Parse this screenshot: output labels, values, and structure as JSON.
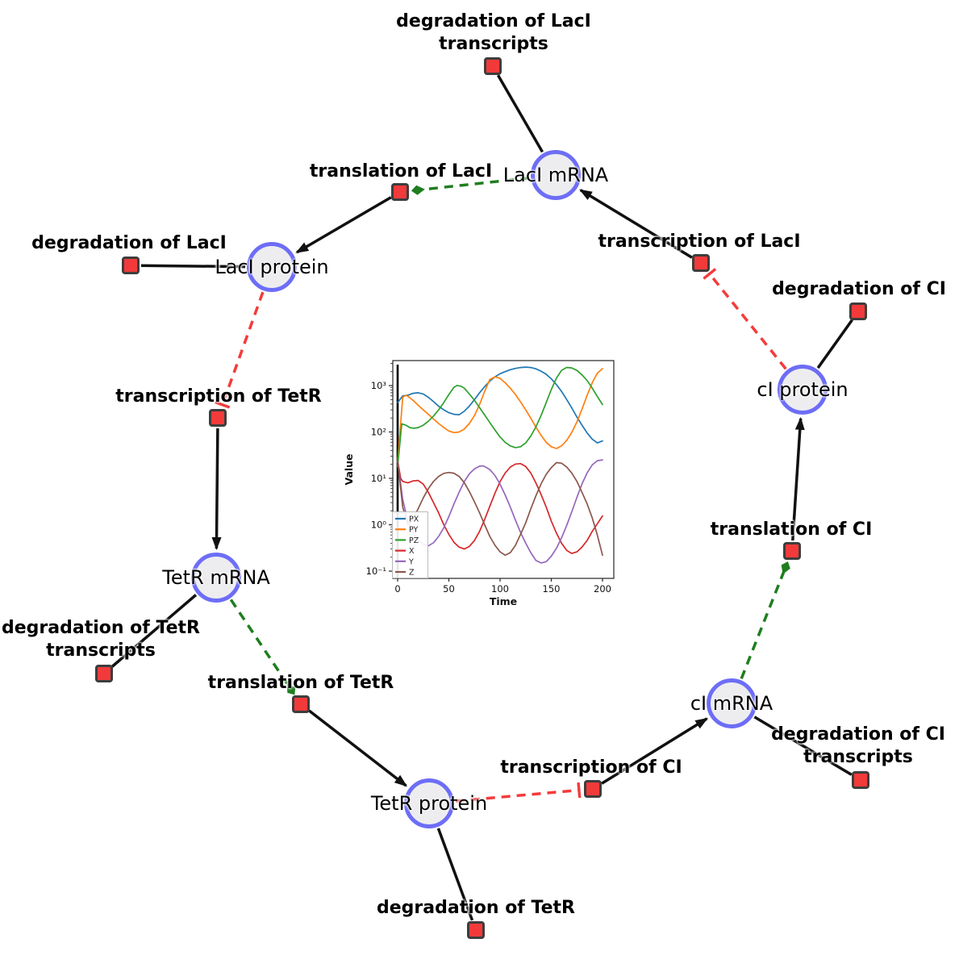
{
  "diagram": {
    "species": [
      {
        "id": "laci-mrna",
        "label": "LacI mRNA"
      },
      {
        "id": "laci-protein",
        "label": "LacI protein"
      },
      {
        "id": "tetr-mrna",
        "label": "TetR mRNA"
      },
      {
        "id": "tetr-protein",
        "label": "TetR protein"
      },
      {
        "id": "ci-mrna",
        "label": "cI mRNA"
      },
      {
        "id": "ci-protein",
        "label": "cI protein"
      }
    ],
    "reactions": [
      {
        "id": "degradation-laci-transcripts",
        "label": "degradation of LacI transcripts"
      },
      {
        "id": "translation-laci",
        "label": "translation of LacI"
      },
      {
        "id": "degradation-laci",
        "label": "degradation of LacI"
      },
      {
        "id": "transcription-laci",
        "label": "transcription of LacI"
      },
      {
        "id": "degradation-ci",
        "label": "degradation of CI"
      },
      {
        "id": "transcription-tetr",
        "label": "transcription of TetR"
      },
      {
        "id": "degradation-tetr-transcripts",
        "label": "degradation of TetR transcripts"
      },
      {
        "id": "translation-tetr",
        "label": "translation of TetR"
      },
      {
        "id": "degradation-tetr",
        "label": "degradation of TetR"
      },
      {
        "id": "transcription-ci",
        "label": "transcription of CI"
      },
      {
        "id": "degradation-ci-transcripts",
        "label": "degradation of CI transcripts"
      },
      {
        "id": "translation-ci",
        "label": "translation of CI"
      }
    ],
    "edge_colors": {
      "production_black": "#111111",
      "catalysis_green": "#1e7e1e",
      "inhibition_red": "#f43b3b"
    },
    "node_colors": {
      "species_fill": "#ededf0",
      "species_border": "#6d6df7",
      "reaction_fill": "#f23a3a",
      "reaction_border": "#3d3d3d"
    }
  },
  "chart_data": {
    "type": "line",
    "title": "",
    "xlabel": "Time",
    "ylabel": "Value",
    "x_ticks": [
      0,
      50,
      100,
      150,
      200
    ],
    "y_scale": "log",
    "y_ticks": [
      {
        "value": 0.1,
        "label": "10⁻¹"
      },
      {
        "value": 1,
        "label": "10⁰"
      },
      {
        "value": 10,
        "label": "10¹"
      },
      {
        "value": 100,
        "label": "10²"
      },
      {
        "value": 1000,
        "label": "10³"
      }
    ],
    "xlim": [
      -4.7,
      211
    ],
    "ylim": [
      0.07,
      3470
    ],
    "grid": false,
    "legend_position": "lower left",
    "initial_spike_at_t": 0,
    "series": [
      {
        "name": "PX",
        "color": "#1f77b4",
        "points": [
          [
            0,
            430
          ],
          [
            5,
            600
          ],
          [
            10,
            620
          ],
          [
            15,
            680
          ],
          [
            20,
            700
          ],
          [
            25,
            660
          ],
          [
            30,
            560
          ],
          [
            35,
            450
          ],
          [
            40,
            360
          ],
          [
            45,
            300
          ],
          [
            50,
            260
          ],
          [
            55,
            240
          ],
          [
            60,
            235
          ],
          [
            65,
            280
          ],
          [
            70,
            360
          ],
          [
            75,
            500
          ],
          [
            80,
            700
          ],
          [
            85,
            950
          ],
          [
            90,
            1250
          ],
          [
            95,
            1550
          ],
          [
            100,
            1800
          ],
          [
            105,
            2000
          ],
          [
            110,
            2200
          ],
          [
            115,
            2350
          ],
          [
            120,
            2450
          ],
          [
            125,
            2500
          ],
          [
            130,
            2450
          ],
          [
            135,
            2300
          ],
          [
            140,
            2050
          ],
          [
            145,
            1750
          ],
          [
            150,
            1400
          ],
          [
            155,
            1050
          ],
          [
            160,
            750
          ],
          [
            165,
            500
          ],
          [
            170,
            330
          ],
          [
            175,
            210
          ],
          [
            180,
            140
          ],
          [
            185,
            95
          ],
          [
            190,
            70
          ],
          [
            195,
            58
          ],
          [
            200,
            64
          ]
        ]
      },
      {
        "name": "PY",
        "color": "#ff7f0e",
        "points": [
          [
            0,
            22
          ],
          [
            5,
            560
          ],
          [
            8,
            620
          ],
          [
            10,
            590
          ],
          [
            15,
            480
          ],
          [
            20,
            380
          ],
          [
            25,
            300
          ],
          [
            30,
            240
          ],
          [
            35,
            190
          ],
          [
            40,
            152
          ],
          [
            45,
            125
          ],
          [
            50,
            105
          ],
          [
            55,
            97
          ],
          [
            60,
            100
          ],
          [
            65,
            115
          ],
          [
            70,
            152
          ],
          [
            75,
            225
          ],
          [
            80,
            390
          ],
          [
            85,
            750
          ],
          [
            90,
            1350
          ],
          [
            95,
            1550
          ],
          [
            100,
            1430
          ],
          [
            105,
            1150
          ],
          [
            110,
            880
          ],
          [
            115,
            640
          ],
          [
            120,
            445
          ],
          [
            125,
            300
          ],
          [
            130,
            198
          ],
          [
            135,
            128
          ],
          [
            140,
            85
          ],
          [
            145,
            60
          ],
          [
            150,
            48
          ],
          [
            155,
            44
          ],
          [
            160,
            50
          ],
          [
            165,
            66
          ],
          [
            170,
            98
          ],
          [
            175,
            165
          ],
          [
            180,
            310
          ],
          [
            185,
            620
          ],
          [
            190,
            1150
          ],
          [
            195,
            1850
          ],
          [
            200,
            2320
          ]
        ]
      },
      {
        "name": "PZ",
        "color": "#2ca02c",
        "points": [
          [
            0,
            18
          ],
          [
            4,
            150
          ],
          [
            8,
            140
          ],
          [
            12,
            124
          ],
          [
            16,
            120
          ],
          [
            20,
            124
          ],
          [
            25,
            140
          ],
          [
            30,
            170
          ],
          [
            35,
            220
          ],
          [
            40,
            300
          ],
          [
            45,
            430
          ],
          [
            50,
            640
          ],
          [
            55,
            920
          ],
          [
            58,
            1010
          ],
          [
            62,
            970
          ],
          [
            65,
            880
          ],
          [
            70,
            660
          ],
          [
            75,
            480
          ],
          [
            80,
            335
          ],
          [
            85,
            232
          ],
          [
            90,
            160
          ],
          [
            95,
            110
          ],
          [
            100,
            78
          ],
          [
            105,
            60
          ],
          [
            110,
            50
          ],
          [
            115,
            46
          ],
          [
            120,
            48
          ],
          [
            125,
            58
          ],
          [
            130,
            82
          ],
          [
            135,
            128
          ],
          [
            140,
            225
          ],
          [
            145,
            430
          ],
          [
            150,
            820
          ],
          [
            155,
            1450
          ],
          [
            160,
            2120
          ],
          [
            165,
            2460
          ],
          [
            170,
            2400
          ],
          [
            175,
            2120
          ],
          [
            180,
            1700
          ],
          [
            185,
            1280
          ],
          [
            190,
            880
          ],
          [
            195,
            580
          ],
          [
            200,
            390
          ]
        ]
      },
      {
        "name": "X",
        "color": "#d62728",
        "points": [
          [
            0,
            24
          ],
          [
            3,
            10
          ],
          [
            5,
            8.6
          ],
          [
            10,
            8
          ],
          [
            15,
            8.8
          ],
          [
            20,
            9
          ],
          [
            25,
            7.5
          ],
          [
            30,
            5
          ],
          [
            35,
            3
          ],
          [
            40,
            1.8
          ],
          [
            45,
            1
          ],
          [
            50,
            0.62
          ],
          [
            55,
            0.42
          ],
          [
            60,
            0.33
          ],
          [
            65,
            0.3
          ],
          [
            70,
            0.34
          ],
          [
            75,
            0.46
          ],
          [
            80,
            0.72
          ],
          [
            85,
            1.3
          ],
          [
            90,
            2.5
          ],
          [
            95,
            4.8
          ],
          [
            100,
            8.5
          ],
          [
            105,
            13
          ],
          [
            110,
            17.5
          ],
          [
            115,
            20.3
          ],
          [
            120,
            20.8
          ],
          [
            125,
            18
          ],
          [
            130,
            13
          ],
          [
            135,
            8
          ],
          [
            140,
            4.5
          ],
          [
            145,
            2.4
          ],
          [
            150,
            1.2
          ],
          [
            155,
            0.66
          ],
          [
            160,
            0.4
          ],
          [
            165,
            0.28
          ],
          [
            170,
            0.24
          ],
          [
            175,
            0.26
          ],
          [
            180,
            0.33
          ],
          [
            185,
            0.46
          ],
          [
            190,
            0.72
          ],
          [
            195,
            1.05
          ],
          [
            200,
            1.55
          ]
        ]
      },
      {
        "name": "Y",
        "color": "#9467bd",
        "points": [
          [
            0,
            24
          ],
          [
            5,
            3.5
          ],
          [
            10,
            1.2
          ],
          [
            15,
            0.68
          ],
          [
            20,
            0.47
          ],
          [
            25,
            0.38
          ],
          [
            30,
            0.35
          ],
          [
            35,
            0.41
          ],
          [
            40,
            0.56
          ],
          [
            45,
            0.86
          ],
          [
            50,
            1.5
          ],
          [
            55,
            2.8
          ],
          [
            60,
            5
          ],
          [
            65,
            8.5
          ],
          [
            70,
            12.5
          ],
          [
            75,
            16
          ],
          [
            80,
            18.3
          ],
          [
            83,
            18.6
          ],
          [
            85,
            18
          ],
          [
            90,
            15.5
          ],
          [
            95,
            11.5
          ],
          [
            100,
            7.5
          ],
          [
            105,
            4.4
          ],
          [
            110,
            2.4
          ],
          [
            115,
            1.25
          ],
          [
            120,
            0.68
          ],
          [
            125,
            0.4
          ],
          [
            130,
            0.25
          ],
          [
            135,
            0.17
          ],
          [
            140,
            0.15
          ],
          [
            145,
            0.16
          ],
          [
            150,
            0.21
          ],
          [
            155,
            0.31
          ],
          [
            160,
            0.52
          ],
          [
            165,
            0.97
          ],
          [
            170,
            1.9
          ],
          [
            175,
            3.9
          ],
          [
            180,
            7.6
          ],
          [
            185,
            13.2
          ],
          [
            190,
            19.5
          ],
          [
            195,
            24
          ],
          [
            200,
            25
          ]
        ]
      },
      {
        "name": "Z",
        "color": "#8c564b",
        "points": [
          [
            0,
            24
          ],
          [
            5,
            2.4
          ],
          [
            10,
            1
          ],
          [
            15,
            1.3
          ],
          [
            20,
            2.2
          ],
          [
            25,
            3.8
          ],
          [
            30,
            6
          ],
          [
            35,
            8.6
          ],
          [
            40,
            11
          ],
          [
            45,
            12.8
          ],
          [
            50,
            13.4
          ],
          [
            55,
            12.9
          ],
          [
            60,
            11
          ],
          [
            65,
            8.1
          ],
          [
            70,
            5.2
          ],
          [
            75,
            3.1
          ],
          [
            80,
            1.8
          ],
          [
            85,
            1
          ],
          [
            90,
            0.56
          ],
          [
            95,
            0.36
          ],
          [
            100,
            0.26
          ],
          [
            105,
            0.22
          ],
          [
            110,
            0.25
          ],
          [
            115,
            0.36
          ],
          [
            120,
            0.62
          ],
          [
            125,
            1.1
          ],
          [
            130,
            2.2
          ],
          [
            135,
            4.2
          ],
          [
            140,
            7.6
          ],
          [
            145,
            12.2
          ],
          [
            150,
            17
          ],
          [
            155,
            21.8
          ],
          [
            160,
            21.2
          ],
          [
            165,
            17.6
          ],
          [
            170,
            13
          ],
          [
            175,
            8.6
          ],
          [
            180,
            5
          ],
          [
            185,
            2.8
          ],
          [
            190,
            1.4
          ],
          [
            195,
            0.6
          ],
          [
            200,
            0.22
          ]
        ]
      }
    ]
  }
}
